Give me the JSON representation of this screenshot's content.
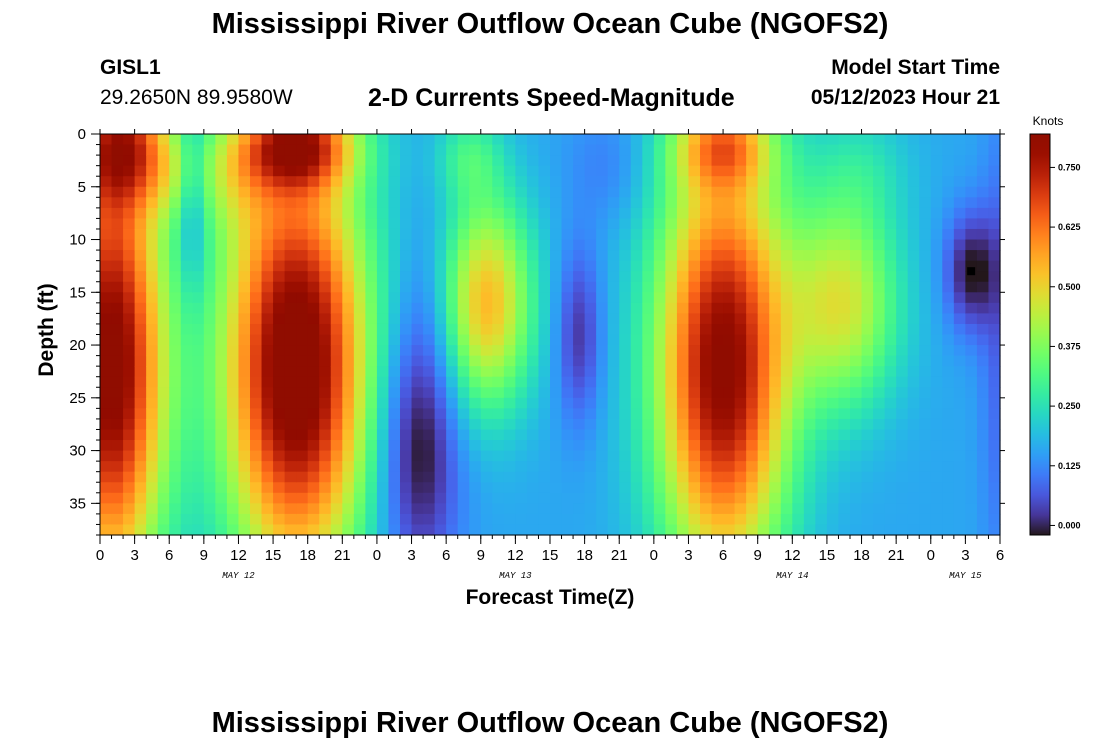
{
  "header": {
    "title": "Mississippi River Outflow Ocean Cube (NGOFS2)",
    "station_id": "GISL1",
    "station_coords": "29.2650N  89.9580W",
    "variable_title": "2-D Currents Speed-Magnitude",
    "model_start_label": "Model Start Time",
    "model_start_value": "05/12/2023 Hour 21"
  },
  "footer": {
    "title": "Mississippi River Outflow Ocean Cube (NGOFS2)"
  },
  "chart_data": {
    "type": "heatmap",
    "title": "2-D Currents Speed-Magnitude",
    "xlabel": "Forecast Time(Z)",
    "ylabel": "Depth (ft)",
    "x_range_hours": [
      0,
      78
    ],
    "x_ticks": [
      {
        "hour": 0,
        "label": "0"
      },
      {
        "hour": 3,
        "label": "3"
      },
      {
        "hour": 6,
        "label": "6"
      },
      {
        "hour": 9,
        "label": "9"
      },
      {
        "hour": 12,
        "label": "12"
      },
      {
        "hour": 15,
        "label": "15"
      },
      {
        "hour": 18,
        "label": "18"
      },
      {
        "hour": 21,
        "label": "21"
      },
      {
        "hour": 24,
        "label": "0"
      },
      {
        "hour": 27,
        "label": "3"
      },
      {
        "hour": 30,
        "label": "6"
      },
      {
        "hour": 33,
        "label": "9"
      },
      {
        "hour": 36,
        "label": "12"
      },
      {
        "hour": 39,
        "label": "15"
      },
      {
        "hour": 42,
        "label": "18"
      },
      {
        "hour": 45,
        "label": "21"
      },
      {
        "hour": 48,
        "label": "0"
      },
      {
        "hour": 51,
        "label": "3"
      },
      {
        "hour": 54,
        "label": "6"
      },
      {
        "hour": 57,
        "label": "9"
      },
      {
        "hour": 60,
        "label": "12"
      },
      {
        "hour": 63,
        "label": "15"
      },
      {
        "hour": 66,
        "label": "18"
      },
      {
        "hour": 69,
        "label": "21"
      },
      {
        "hour": 72,
        "label": "0"
      },
      {
        "hour": 75,
        "label": "3"
      },
      {
        "hour": 78,
        "label": "6"
      }
    ],
    "date_labels": [
      {
        "hour": 12,
        "label": "MAY 12"
      },
      {
        "hour": 36,
        "label": "MAY 13"
      },
      {
        "hour": 60,
        "label": "MAY 14"
      },
      {
        "hour": 75,
        "label": "MAY 15"
      }
    ],
    "y_range_ft": [
      0,
      38
    ],
    "y_ticks": [
      0,
      5,
      10,
      15,
      20,
      25,
      30,
      35
    ],
    "colorbar": {
      "unit": "Knots",
      "range": [
        -0.02,
        0.82
      ],
      "ticks": [
        "0.000",
        "0.125",
        "0.250",
        "0.375",
        "0.500",
        "0.625",
        "0.750"
      ]
    },
    "marker": {
      "hour": 75.5,
      "depth_ft": 13,
      "shape": "square",
      "color": "#000000"
    },
    "grid": false,
    "colormap": "turbo",
    "speed_field": {
      "base": 0.16,
      "blobs": [
        {
          "h": 1,
          "d": 22,
          "sh": 3.3,
          "sd": 15,
          "a": 0.68
        },
        {
          "h": 2,
          "d": 1,
          "sh": 3,
          "sd": 4,
          "a": 0.4
        },
        {
          "h": 17,
          "d": 22,
          "sh": 4.4,
          "sd": 14,
          "a": 0.72
        },
        {
          "h": 17,
          "d": 1,
          "sh": 3.5,
          "sd": 3,
          "a": 0.45
        },
        {
          "h": 11.5,
          "d": 4,
          "sh": 2.5,
          "sd": 4,
          "a": 0.13
        },
        {
          "h": 33.5,
          "d": 16,
          "sh": 2.8,
          "sd": 7,
          "a": 0.38
        },
        {
          "h": 32,
          "d": 2,
          "sh": 2,
          "sd": 3,
          "a": 0.12
        },
        {
          "h": 54,
          "d": 22,
          "sh": 4,
          "sd": 14,
          "a": 0.66
        },
        {
          "h": 54,
          "d": 1,
          "sh": 3,
          "sd": 3,
          "a": 0.3
        },
        {
          "h": 64.5,
          "d": 16,
          "sh": 3.3,
          "sd": 7,
          "a": 0.3
        },
        {
          "h": 66,
          "d": 3,
          "sh": 3,
          "sd": 4,
          "a": 0.07
        },
        {
          "h": 6.5,
          "d": 4,
          "sh": 2,
          "sd": 3,
          "a": 0.08
        },
        {
          "h": 8,
          "d": 6,
          "sh": 0.9,
          "sd": 6,
          "a": -0.12
        },
        {
          "h": 27.5,
          "d": 30,
          "sh": 2.5,
          "sd": 9,
          "a": -0.2
        },
        {
          "h": 28.5,
          "d": 16,
          "sh": 2,
          "sd": 8,
          "a": -0.05
        },
        {
          "h": 41.5,
          "d": 19,
          "sh": 1.4,
          "sd": 6,
          "a": -0.14
        },
        {
          "h": 44,
          "d": 3,
          "sh": 2.5,
          "sd": 4,
          "a": -0.05
        },
        {
          "h": 75.5,
          "d": 13,
          "sh": 1.6,
          "sd": 4,
          "a": -0.18
        },
        {
          "h": 78,
          "d": 20,
          "sh": 1.2,
          "sd": 16,
          "a": -0.08
        }
      ]
    }
  }
}
